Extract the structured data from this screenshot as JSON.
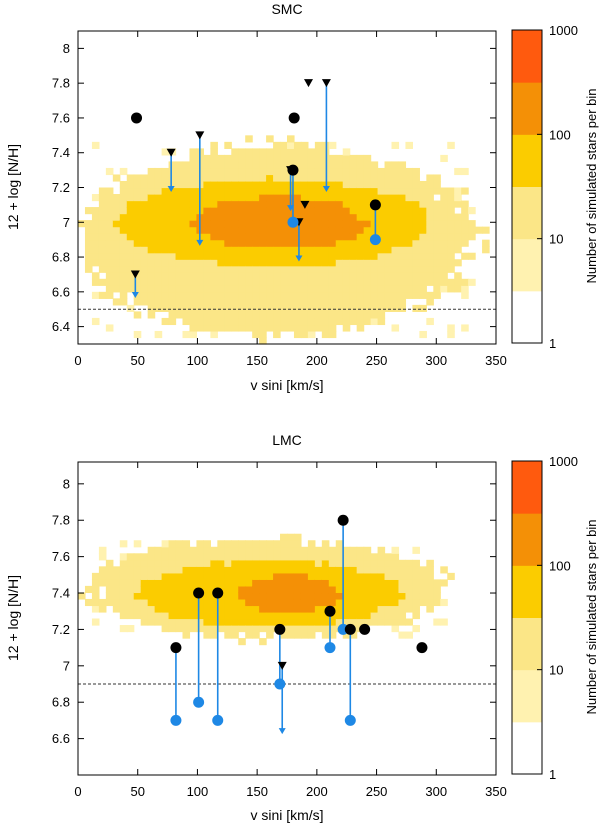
{
  "chart_data": [
    {
      "type": "scatter",
      "title": "SMC",
      "xlabel": "v sini [km/s]",
      "ylabel": "12 + log [N/H]",
      "xlim": [
        0,
        350
      ],
      "ylim": [
        6.3,
        8.1
      ],
      "xticks": [
        0,
        50,
        100,
        150,
        200,
        250,
        300,
        350
      ],
      "xtick_labels": [
        "0",
        "50",
        "100",
        "150",
        "200",
        "250",
        "300",
        "350"
      ],
      "yticks": [
        6.4,
        6.6,
        6.8,
        7.0,
        7.2,
        7.4,
        7.6,
        7.8,
        8.0
      ],
      "ytick_labels": [
        "6.4",
        "6.6",
        "6.8",
        "7",
        "7.2",
        "7.4",
        "7.6",
        "7.8",
        "8"
      ],
      "threshold_line": 6.5,
      "density_background": {
        "description": "binned simulated star counts",
        "outer_region": {
          "x": [
            0,
            332
          ],
          "y": [
            6.35,
            7.45
          ],
          "level": "10"
        },
        "mid_region": {
          "x": [
            30,
            295
          ],
          "y": [
            6.75,
            7.25
          ],
          "level": "30"
        },
        "inner_region": {
          "x": [
            95,
            240
          ],
          "y": [
            6.85,
            7.15
          ],
          "level": "100"
        }
      },
      "observed_points": [
        {
          "vsini": 49,
          "logNH": 7.6
        },
        {
          "vsini": 181,
          "logNH": 7.6
        },
        {
          "vsini": 180,
          "logNH": 7.3
        },
        {
          "vsini": 249,
          "logNH": 7.1
        }
      ],
      "corrected_points": [
        {
          "vsini": 180,
          "logNH": 7.0,
          "from": 7.3
        },
        {
          "vsini": 249,
          "logNH": 6.9,
          "from": 7.1
        }
      ],
      "upper_limits": [
        {
          "vsini": 78,
          "logNH": 7.4,
          "to": 7.18
        },
        {
          "vsini": 102,
          "logNH": 7.5,
          "to": 6.87
        },
        {
          "vsini": 178,
          "logNH": 7.3,
          "to": 7.07
        },
        {
          "vsini": 190,
          "logNH": 7.1,
          "to": null
        },
        {
          "vsini": 185,
          "logNH": 7.0,
          "to": 6.78
        },
        {
          "vsini": 208,
          "logNH": 7.8,
          "to": 7.18
        },
        {
          "vsini": 193,
          "logNH": 7.8,
          "to": null
        },
        {
          "vsini": 48,
          "logNH": 6.7,
          "to": 6.57
        }
      ]
    },
    {
      "type": "scatter",
      "title": "LMC",
      "xlabel": "v sini [km/s]",
      "ylabel": "12 + log [N/H]",
      "xlim": [
        0,
        350
      ],
      "ylim": [
        6.4,
        8.12
      ],
      "xticks": [
        0,
        50,
        100,
        150,
        200,
        250,
        300,
        350
      ],
      "xtick_labels": [
        "0",
        "50",
        "100",
        "150",
        "200",
        "250",
        "300",
        "350"
      ],
      "yticks": [
        6.6,
        6.8,
        7.0,
        7.2,
        7.4,
        7.6,
        7.8,
        8.0
      ],
      "ytick_labels": [
        "6.6",
        "6.8",
        "7",
        "7.2",
        "7.4",
        "7.6",
        "7.8",
        "8"
      ],
      "threshold_line": 6.9,
      "density_background": {
        "description": "binned simulated star counts",
        "outer_region": {
          "x": [
            10,
            310
          ],
          "y": [
            7.15,
            7.7
          ],
          "level": "10"
        },
        "mid_region": {
          "x": [
            50,
            270
          ],
          "y": [
            7.22,
            7.58
          ],
          "level": "30"
        },
        "inner_region": {
          "x": [
            135,
            220
          ],
          "y": [
            7.3,
            7.5
          ],
          "level": "100"
        }
      },
      "observed_points": [
        {
          "vsini": 82,
          "logNH": 7.1
        },
        {
          "vsini": 101,
          "logNH": 7.4
        },
        {
          "vsini": 117,
          "logNH": 7.4
        },
        {
          "vsini": 169,
          "logNH": 7.2
        },
        {
          "vsini": 211,
          "logNH": 7.3
        },
        {
          "vsini": 222,
          "logNH": 7.8
        },
        {
          "vsini": 228,
          "logNH": 7.2
        },
        {
          "vsini": 240,
          "logNH": 7.2
        },
        {
          "vsini": 288,
          "logNH": 7.1
        }
      ],
      "corrected_points": [
        {
          "vsini": 82,
          "logNH": 6.7,
          "from": 7.1
        },
        {
          "vsini": 101,
          "logNH": 6.8,
          "from": 7.4
        },
        {
          "vsini": 117,
          "logNH": 6.7,
          "from": 7.4
        },
        {
          "vsini": 169,
          "logNH": 6.9,
          "from": 7.2
        },
        {
          "vsini": 211,
          "logNH": 7.1,
          "from": 7.3
        },
        {
          "vsini": 222,
          "logNH": 7.2,
          "from": 7.8
        },
        {
          "vsini": 228,
          "logNH": 6.7,
          "from": 7.2
        }
      ],
      "upper_limits": [
        {
          "vsini": 171,
          "logNH": 7.0,
          "to": 6.63
        }
      ]
    }
  ],
  "colorbar": {
    "label": "Number of simulated stars per bin",
    "tick_labels": [
      "1000",
      "100",
      "10",
      "1"
    ],
    "levels": [
      {
        "name": "1",
        "color": "#ffffff"
      },
      {
        "name": "3",
        "color": "#fff2b0"
      },
      {
        "name": "10",
        "color": "#fbe687"
      },
      {
        "name": "30",
        "color": "#fbcc00"
      },
      {
        "name": "100",
        "color": "#f49006"
      },
      {
        "name": "300",
        "color": "#ff5a0e"
      }
    ]
  },
  "colors": {
    "observed": "#000000",
    "corrected": "#1e88e5",
    "arrow": "#1e88e5"
  }
}
